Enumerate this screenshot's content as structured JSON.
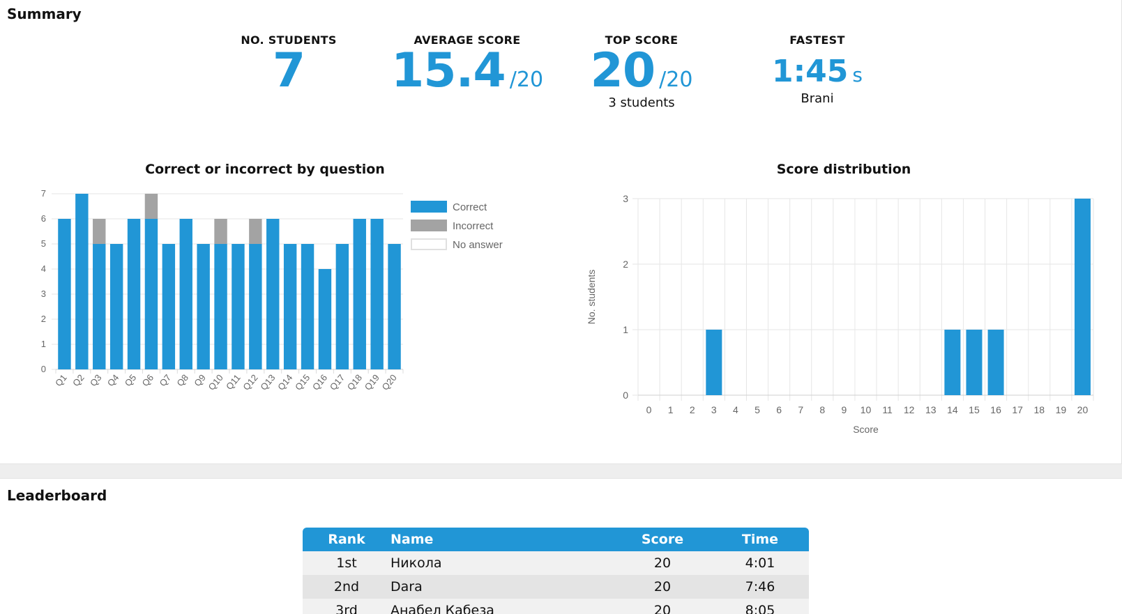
{
  "summary": {
    "title": "Summary",
    "stats": {
      "students": {
        "label": "NO. STUDENTS",
        "value": "7"
      },
      "average": {
        "label": "AVERAGE SCORE",
        "value": "15.4",
        "unit": "/20"
      },
      "top": {
        "label": "TOP SCORE",
        "value": "20",
        "unit": "/20",
        "sub": "3 students"
      },
      "fastest": {
        "label": "FASTEST",
        "value": "1:45",
        "unit": "s",
        "sub": "Brani"
      }
    }
  },
  "chart_data": [
    {
      "type": "bar",
      "title": "Correct or incorrect by question",
      "stacked": true,
      "categories": [
        "Q1",
        "Q2",
        "Q3",
        "Q4",
        "Q5",
        "Q6",
        "Q7",
        "Q8",
        "Q9",
        "Q10",
        "Q11",
        "Q12",
        "Q13",
        "Q14",
        "Q15",
        "Q16",
        "Q17",
        "Q18",
        "Q19",
        "Q20"
      ],
      "series": [
        {
          "name": "Correct",
          "color": "#2196d6",
          "values": [
            6,
            7,
            5,
            5,
            6,
            6,
            5,
            6,
            5,
            5,
            5,
            5,
            6,
            5,
            5,
            4,
            5,
            6,
            6,
            5
          ]
        },
        {
          "name": "Incorrect",
          "color": "#a3a3a3",
          "values": [
            0,
            0,
            1,
            0,
            0,
            1,
            0,
            0,
            0,
            1,
            0,
            1,
            0,
            0,
            0,
            0,
            0,
            0,
            0,
            0
          ]
        },
        {
          "name": "No answer",
          "color": "#ffffff",
          "values": [
            0,
            0,
            0,
            0,
            0,
            0,
            0,
            0,
            0,
            0,
            0,
            0,
            0,
            0,
            0,
            0,
            0,
            0,
            0,
            0
          ]
        }
      ],
      "ylim": [
        0,
        7
      ],
      "yticks": [
        "0",
        "1",
        "2",
        "3",
        "4",
        "5",
        "6",
        "7"
      ],
      "grid": true,
      "legend": "right"
    },
    {
      "type": "bar",
      "title": "Score distribution",
      "categories": [
        "0",
        "1",
        "2",
        "3",
        "4",
        "5",
        "6",
        "7",
        "8",
        "9",
        "10",
        "11",
        "12",
        "13",
        "14",
        "15",
        "16",
        "17",
        "18",
        "19",
        "20"
      ],
      "values": [
        0,
        0,
        0,
        1,
        0,
        0,
        0,
        0,
        0,
        0,
        0,
        0,
        0,
        0,
        1,
        1,
        1,
        0,
        0,
        0,
        3
      ],
      "color": "#2196d6",
      "xlabel": "Score",
      "ylabel": "No. students",
      "ylim": [
        0,
        3
      ],
      "yticks": [
        "0",
        "1",
        "2",
        "3"
      ],
      "grid": true
    }
  ],
  "leaderboard": {
    "title": "Leaderboard",
    "headers": {
      "rank": "Rank",
      "name": "Name",
      "score": "Score",
      "time": "Time"
    },
    "rows": [
      {
        "rank": "1st",
        "name": "Никола",
        "score": "20",
        "time": "4:01"
      },
      {
        "rank": "2nd",
        "name": "Dara",
        "score": "20",
        "time": "7:46"
      },
      {
        "rank": "3rd",
        "name": "Анабел Кабеза",
        "score": "20",
        "time": "8:05"
      }
    ]
  }
}
